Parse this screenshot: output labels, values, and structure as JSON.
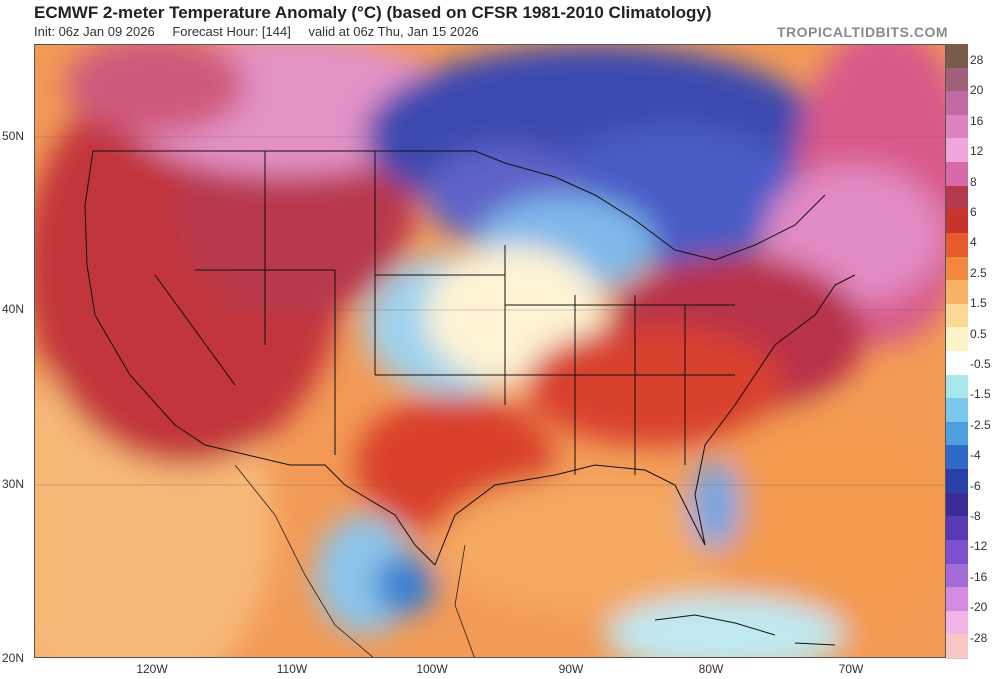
{
  "header": {
    "title": "ECMWF 2-meter Temperature Anomaly (°C) (based on CFSR 1981-2010 Climatology)",
    "init": "Init: 06z Jan 09 2026",
    "forecast_hour": "Forecast Hour: [144]",
    "valid": "valid at 06z Thu, Jan 15 2026",
    "brand": "TROPICALTIDBITS.COM"
  },
  "axes": {
    "latitudes": [
      "50N",
      "40N",
      "30N",
      "20N"
    ],
    "longitudes": [
      "120W",
      "110W",
      "100W",
      "90W",
      "80W",
      "70W"
    ]
  },
  "colorbar": {
    "labels": [
      "28",
      "20",
      "16",
      "12",
      "8",
      "6",
      "4",
      "2.5",
      "1.5",
      "0.5",
      "-0.5",
      "-1.5",
      "-2.5",
      "-4",
      "-6",
      "-8",
      "-12",
      "-16",
      "-20",
      "-28"
    ],
    "colors": [
      "#7a5a48",
      "#a0607c",
      "#c26aa4",
      "#de82c4",
      "#f0a6da",
      "#d96aa8",
      "#b53a4e",
      "#c9342a",
      "#e65a2c",
      "#f2883e",
      "#f7b266",
      "#fbd896",
      "#fdf3c8",
      "#ffffff",
      "#a8e8ec",
      "#7cc8ec",
      "#4f9ee0",
      "#2f6ac8",
      "#2a40a8",
      "#3a2e96",
      "#5a3ab4",
      "#7d52cc",
      "#a46ad6",
      "#d48ae0",
      "#f0b4e6",
      "#f8c8c8"
    ]
  },
  "anomaly_regions": [
    {
      "name": "western-us-warm",
      "color": "#c23a3a"
    },
    {
      "name": "canada-cold",
      "color": "#3c4cb4"
    },
    {
      "name": "central-plains-cool",
      "color": "#8ec8ec"
    },
    {
      "name": "east-coast-warm",
      "color": "#b8304a"
    },
    {
      "name": "northeast-pink",
      "color": "#e490c8"
    }
  ]
}
